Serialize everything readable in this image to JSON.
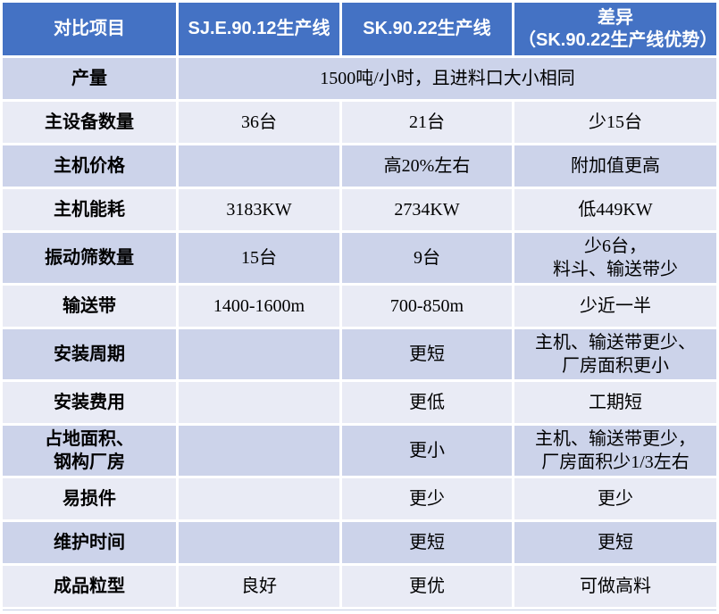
{
  "colors": {
    "header_bg": "#4472C4",
    "header_text": "#FFFFFF",
    "band_dark": "#CCD3EA",
    "band_light": "#E9EBF5",
    "grid": "#FFFFFF",
    "body_text": "#000000"
  },
  "table": {
    "columns": {
      "item": "对比项目",
      "sje": "SJ.E.90.12生产线",
      "sk": "SK.90.22生产线",
      "diff": "差异\n（SK.90.22生产线优势）"
    },
    "rows": [
      {
        "label": "产量",
        "merged": "1500吨/小时，且进料口大小相同"
      },
      {
        "label": "主设备数量",
        "sje": "36台",
        "sk": "21台",
        "diff": "少15台"
      },
      {
        "label": "主机价格",
        "sje": "",
        "sk": "高20%左右",
        "diff": "附加值更高"
      },
      {
        "label": "主机能耗",
        "sje": "3183KW",
        "sk": "2734KW",
        "diff": "低449KW"
      },
      {
        "label": "振动筛数量",
        "sje": "15台",
        "sk": "9台",
        "diff": "少6台，\n料斗、输送带少"
      },
      {
        "label": "输送带",
        "sje": "1400-1600m",
        "sk": "700-850m",
        "diff": "少近一半"
      },
      {
        "label": "安装周期",
        "sje": "",
        "sk": "更短",
        "diff": "主机、输送带更少、\n厂房面积更小"
      },
      {
        "label": "安装费用",
        "sje": "",
        "sk": "更低",
        "diff": "工期短"
      },
      {
        "label": "占地面积、\n钢构厂房",
        "sje": "",
        "sk": "更小",
        "diff": "主机、输送带更少，\n厂房面积少1/3左右"
      },
      {
        "label": "易损件",
        "sje": "",
        "sk": "更少",
        "diff": "更少"
      },
      {
        "label": "维护时间",
        "sje": "",
        "sk": "更短",
        "diff": "更短"
      },
      {
        "label": "成品粒型",
        "sje": "良好",
        "sk": "更优",
        "diff": "可做高料"
      }
    ]
  }
}
